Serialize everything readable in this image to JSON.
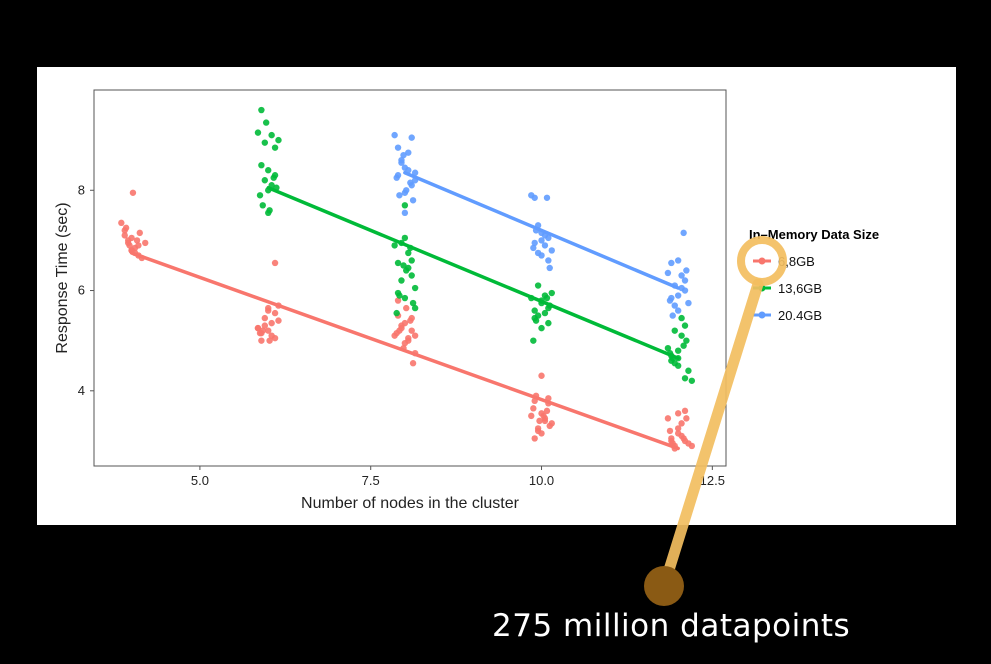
{
  "chart_data": {
    "type": "scatter",
    "xlabel": "Number of nodes in the cluster",
    "ylabel": "Response Time (sec)",
    "xlim": [
      3.45,
      12.7
    ],
    "ylim": [
      2.5,
      10.0
    ],
    "x_ticks": [
      "5.0",
      "7.5",
      "10.0",
      "12.5"
    ],
    "y_ticks": [
      "4",
      "6",
      "8"
    ],
    "grid": false,
    "legend": {
      "title": "In–Memory Data Size",
      "placement": "right",
      "entries": [
        "6,8GB",
        "13,6GB",
        "20.4GB"
      ]
    },
    "series": [
      {
        "name": "6,8GB",
        "color": "#F8766D",
        "fit": {
          "x": [
            4,
            12
          ],
          "y": [
            6.75,
            2.85
          ]
        },
        "x": [
          3.85,
          3.9,
          3.95,
          4.0,
          4.05,
          4.1,
          3.9,
          3.95,
          4.0,
          4.05,
          4.1,
          4.15,
          4.2,
          3.92,
          4.08,
          4.02,
          3.97,
          4.12,
          4.0,
          5.85,
          5.9,
          5.95,
          6.0,
          6.05,
          6.1,
          6.15,
          5.9,
          6.0,
          6.1,
          5.95,
          6.05,
          5.85,
          6.15,
          6.0,
          6.1,
          5.92,
          6.02,
          5.88,
          7.85,
          7.9,
          7.95,
          8.0,
          8.05,
          8.1,
          8.15,
          7.9,
          8.0,
          8.1,
          7.95,
          8.05,
          8.12,
          7.88,
          8.02,
          8.08,
          7.92,
          7.98,
          8.15,
          9.85,
          9.9,
          9.95,
          10.0,
          10.05,
          10.1,
          10.15,
          9.9,
          10.0,
          10.1,
          9.95,
          10.05,
          9.88,
          10.12,
          10.0,
          9.92,
          10.08,
          9.97,
          10.03,
          11.85,
          11.9,
          11.95,
          12.0,
          12.05,
          12.1,
          12.15,
          11.9,
          12.0,
          12.1,
          11.95,
          12.05,
          12.12,
          11.88,
          12.2,
          12.0,
          12.08,
          11.92
        ],
        "y": [
          7.35,
          7.1,
          6.95,
          7.05,
          6.85,
          6.9,
          7.2,
          7.0,
          6.8,
          6.75,
          6.7,
          6.65,
          6.95,
          7.25,
          7.0,
          7.95,
          6.9,
          7.15,
          6.8,
          5.25,
          5.15,
          5.45,
          5.6,
          5.35,
          5.05,
          5.7,
          5.0,
          5.2,
          5.55,
          5.3,
          5.1,
          5.25,
          5.4,
          5.65,
          6.55,
          5.2,
          5.0,
          5.15,
          5.1,
          5.5,
          5.25,
          5.35,
          5.0,
          5.2,
          4.75,
          5.8,
          4.95,
          5.45,
          5.3,
          5.05,
          4.55,
          5.15,
          5.65,
          5.4,
          5.2,
          4.85,
          5.1,
          3.5,
          3.8,
          3.2,
          3.55,
          3.4,
          3.85,
          3.35,
          3.05,
          4.3,
          3.75,
          3.25,
          3.45,
          3.65,
          3.3,
          3.15,
          3.9,
          3.6,
          3.4,
          3.5,
          3.45,
          3.0,
          2.9,
          3.15,
          3.35,
          3.6,
          2.95,
          3.05,
          3.25,
          3.0,
          2.85,
          3.1,
          3.45,
          3.2,
          2.9,
          3.55,
          3.05,
          2.95
        ]
      },
      {
        "name": "13,6GB",
        "color": "#00BA38",
        "fit": {
          "x": [
            6,
            12
          ],
          "y": [
            8.05,
            4.65
          ]
        },
        "x": [
          5.85,
          5.9,
          5.95,
          6.0,
          6.05,
          6.1,
          6.15,
          5.9,
          6.0,
          6.1,
          5.95,
          6.05,
          5.88,
          6.12,
          6.0,
          5.92,
          6.08,
          6.02,
          5.97,
          7.85,
          7.9,
          7.95,
          8.0,
          8.05,
          8.1,
          8.15,
          7.9,
          8.0,
          8.1,
          7.95,
          8.05,
          8.12,
          7.88,
          8.02,
          8.08,
          7.92,
          7.98,
          8.15,
          8.0,
          9.85,
          9.9,
          9.95,
          10.0,
          10.05,
          10.1,
          10.15,
          9.9,
          10.0,
          10.1,
          9.95,
          10.05,
          9.88,
          10.12,
          10.0,
          9.92,
          10.08,
          11.85,
          11.9,
          11.95,
          12.0,
          12.05,
          12.1,
          12.15,
          11.9,
          12.0,
          12.1,
          11.95,
          12.05,
          11.88,
          12.12,
          12.0,
          11.92,
          12.08,
          12.2
        ],
        "y": [
          9.15,
          9.6,
          8.95,
          8.4,
          9.1,
          8.85,
          9.0,
          8.5,
          8.0,
          8.3,
          8.2,
          8.1,
          7.9,
          8.05,
          7.55,
          7.7,
          8.25,
          7.6,
          9.35,
          6.9,
          6.55,
          6.95,
          7.05,
          6.45,
          6.3,
          6.05,
          5.95,
          5.85,
          6.6,
          6.2,
          6.75,
          5.75,
          5.55,
          6.4,
          6.85,
          5.9,
          6.5,
          5.65,
          7.7,
          5.85,
          5.6,
          5.5,
          5.75,
          5.9,
          5.65,
          5.95,
          5.45,
          5.8,
          5.35,
          6.1,
          5.55,
          5.0,
          5.7,
          5.25,
          5.4,
          5.85,
          4.85,
          4.7,
          4.55,
          4.65,
          5.1,
          5.3,
          4.4,
          4.6,
          4.8,
          4.25,
          5.2,
          5.45,
          4.75,
          5.0,
          4.5,
          4.65,
          4.9,
          4.2
        ]
      },
      {
        "name": "20.4GB",
        "color": "#619CFF",
        "fit": {
          "x": [
            8,
            12
          ],
          "y": [
            8.35,
            6.05
          ]
        },
        "x": [
          7.85,
          7.9,
          7.95,
          8.0,
          8.05,
          8.1,
          8.15,
          7.9,
          8.0,
          8.1,
          7.95,
          8.05,
          8.12,
          7.88,
          8.02,
          8.08,
          7.92,
          7.98,
          8.15,
          8.0,
          9.85,
          9.9,
          9.95,
          10.0,
          10.05,
          10.1,
          10.15,
          9.9,
          10.0,
          10.1,
          9.95,
          10.05,
          9.88,
          10.12,
          10.0,
          9.92,
          10.08,
          11.85,
          11.9,
          11.95,
          12.0,
          12.05,
          12.1,
          12.15,
          11.9,
          12.0,
          12.1,
          11.95,
          12.05,
          11.88,
          12.12,
          12.0,
          11.92,
          12.08
        ],
        "y": [
          9.1,
          8.85,
          8.6,
          8.45,
          8.75,
          9.05,
          8.2,
          8.3,
          7.95,
          8.1,
          8.55,
          8.4,
          7.8,
          8.25,
          8.0,
          8.15,
          7.9,
          8.7,
          8.35,
          7.55,
          7.9,
          7.85,
          7.3,
          7.15,
          6.9,
          7.05,
          6.8,
          6.95,
          7.0,
          6.6,
          6.75,
          7.1,
          6.85,
          6.45,
          6.7,
          7.2,
          7.85,
          6.35,
          6.55,
          6.1,
          5.9,
          6.3,
          6.0,
          5.75,
          5.85,
          5.6,
          6.2,
          5.7,
          6.05,
          5.8,
          6.4,
          6.6,
          5.5,
          7.15
        ]
      }
    ]
  },
  "caption": "275 million datapoints",
  "colors": {
    "background": "#000000",
    "panel": "#FFFFFF",
    "highlight": "#F3BE60",
    "pin": "#8A5A14"
  }
}
